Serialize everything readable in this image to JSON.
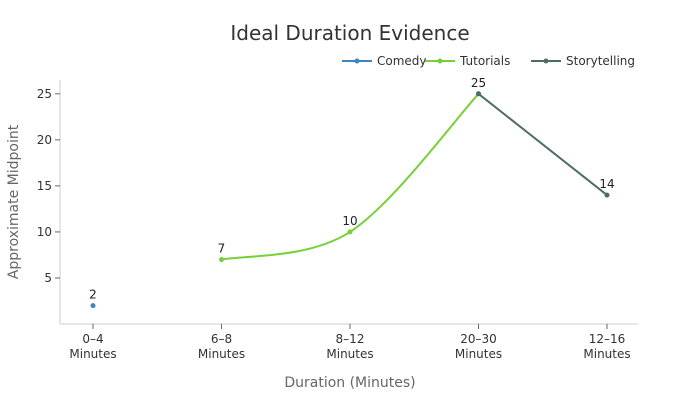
{
  "chart_data": {
    "type": "line",
    "title": "Ideal Duration Evidence",
    "xlabel": "Duration (Minutes)",
    "ylabel": "Approximate Midpoint",
    "categories": [
      [
        "0–4",
        "Minutes"
      ],
      [
        "6–8",
        "Minutes"
      ],
      [
        "8–12",
        "Minutes"
      ],
      [
        "20–30",
        "Minutes"
      ],
      [
        "12–16",
        "Minutes"
      ]
    ],
    "ylim": [
      0,
      26.5
    ],
    "yticks": [
      5,
      10,
      15,
      20,
      25
    ],
    "grid": false,
    "legend_position": "top-right",
    "series": [
      {
        "name": "Comedy",
        "color": "#3d85c6",
        "points": [
          {
            "x": 0,
            "y": 2
          }
        ],
        "smooth": false
      },
      {
        "name": "Tutorials",
        "color": "#76d03a",
        "points": [
          {
            "x": 1,
            "y": 7
          },
          {
            "x": 2,
            "y": 10
          },
          {
            "x": 3,
            "y": 25
          }
        ],
        "smooth": true
      },
      {
        "name": "Storytelling",
        "color": "#4f6b68",
        "points": [
          {
            "x": 3,
            "y": 25
          },
          {
            "x": 4,
            "y": 14
          }
        ],
        "smooth": false
      }
    ],
    "data_labels": [
      {
        "x": 0,
        "y": 2,
        "text": "2"
      },
      {
        "x": 1,
        "y": 7,
        "text": "7"
      },
      {
        "x": 2,
        "y": 10,
        "text": "10"
      },
      {
        "x": 3,
        "y": 25,
        "text": "25"
      },
      {
        "x": 4,
        "y": 14,
        "text": "14"
      }
    ]
  }
}
